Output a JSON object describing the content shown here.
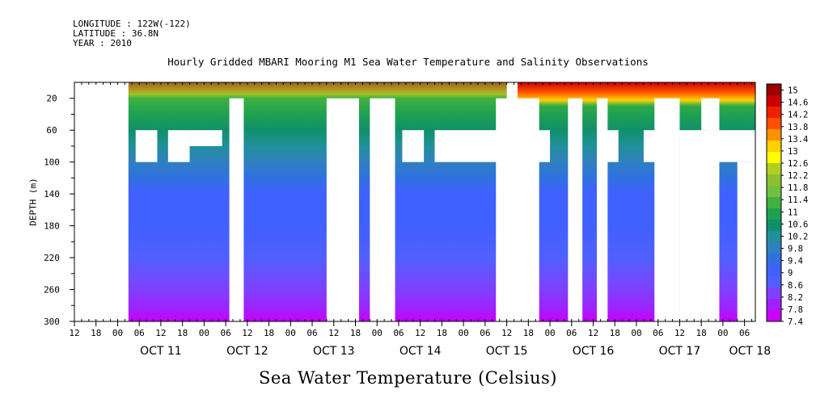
{
  "header": {
    "longitude": "LONGITUDE : 122W(-122)",
    "latitude": "LATITUDE : 36.8N",
    "year": "YEAR : 2010"
  },
  "chart_data": {
    "type": "heatmap",
    "title": "Hourly Gridded MBARI Mooring M1 Sea Water Temperature and Salinity Observations",
    "xlabel": "Sea Water Temperature (Celsius)",
    "ylabel": "DEPTH (m)",
    "x_range": [
      "2010-10-10T12:00",
      "2010-10-18T09:00"
    ],
    "ylim": [
      300,
      0
    ],
    "y_ticks": [
      20,
      60,
      100,
      140,
      180,
      220,
      260,
      300
    ],
    "x_hour_ticks": [
      "12",
      "18",
      "00",
      "06",
      "12",
      "18",
      "00",
      "06",
      "12",
      "18",
      "00",
      "06",
      "12",
      "18",
      "00",
      "06",
      "12",
      "18",
      "00",
      "06",
      "12",
      "18",
      "00",
      "06",
      "12",
      "18",
      "00",
      "06",
      "12",
      "18",
      "00",
      "06"
    ],
    "x_date_labels": [
      "OCT 11",
      "OCT 12",
      "OCT 13",
      "OCT 14",
      "OCT 15",
      "OCT 16",
      "OCT 17",
      "OCT 18"
    ],
    "colorbar": {
      "min": 7.4,
      "max": 15.2,
      "labels": [
        "15",
        "14.6",
        "14.2",
        "13.8",
        "13.4",
        "13",
        "12.6",
        "12.2",
        "11.8",
        "11.4",
        "11",
        "10.6",
        "10.2",
        "9.8",
        "9.4",
        "9",
        "8.6",
        "8.2",
        "7.8",
        "7.4"
      ],
      "colors": [
        "#cc00ff",
        "#a020ff",
        "#8040ff",
        "#5060ff",
        "#4060ff",
        "#3070e0",
        "#2f80c0",
        "#20909a",
        "#10906a",
        "#20a050",
        "#40b040",
        "#70c040",
        "#90c030",
        "#b0d020",
        "#ffff00",
        "#ffd000",
        "#ff9000",
        "#ff5000",
        "#ee2000",
        "#cc0000",
        "#990000"
      ]
    },
    "depth_profile": [
      {
        "depth": 10,
        "temp": 11.8
      },
      {
        "depth": 20,
        "temp": 11.2
      },
      {
        "depth": 40,
        "temp": 10.8
      },
      {
        "depth": 60,
        "temp": 10.4
      },
      {
        "depth": 80,
        "temp": 10.1
      },
      {
        "depth": 100,
        "temp": 9.8
      },
      {
        "depth": 120,
        "temp": 9.5
      },
      {
        "depth": 140,
        "temp": 9.2
      },
      {
        "depth": 160,
        "temp": 9.0
      },
      {
        "depth": 180,
        "temp": 8.9
      },
      {
        "depth": 220,
        "temp": 8.6
      },
      {
        "depth": 260,
        "temp": 8.2
      },
      {
        "depth": 285,
        "temp": 7.9
      },
      {
        "depth": 300,
        "temp": 7.5
      }
    ],
    "missing_columns": [
      {
        "from": "2010-10-10T12:00",
        "to": "2010-10-11T03:00",
        "d0": 0,
        "d1": 300
      },
      {
        "from": "2010-10-12T07:00",
        "to": "2010-10-12T11:00",
        "d0": 20,
        "d1": 300
      },
      {
        "from": "2010-10-13T10:00",
        "to": "2010-10-13T19:00",
        "d0": 20,
        "d1": 300
      },
      {
        "from": "2010-10-13T22:00",
        "to": "2010-10-14T05:00",
        "d0": 20,
        "d1": 300
      },
      {
        "from": "2010-10-15T09:00",
        "to": "2010-10-15T21:00",
        "d0": 20,
        "d1": 300
      },
      {
        "from": "2010-10-15T12:00",
        "to": "2010-10-15T15:00",
        "d0": 0,
        "d1": 20
      },
      {
        "from": "2010-10-16T05:00",
        "to": "2010-10-16T09:00",
        "d0": 20,
        "d1": 300
      },
      {
        "from": "2010-10-16T13:00",
        "to": "2010-10-16T16:00",
        "d0": 20,
        "d1": 300
      },
      {
        "from": "2010-10-17T05:00",
        "to": "2010-10-17T12:00",
        "d0": 20,
        "d1": 300
      },
      {
        "from": "2010-10-17T12:00",
        "to": "2010-10-17T23:00",
        "d0": 60,
        "d1": 300
      },
      {
        "from": "2010-10-17T18:00",
        "to": "2010-10-17T23:00",
        "d0": 20,
        "d1": 60
      },
      {
        "from": "2010-10-18T04:00",
        "to": "2010-10-18T09:00",
        "d0": 100,
        "d1": 300
      }
    ],
    "missing_patches": [
      {
        "from": "2010-10-11T05:00",
        "to": "2010-10-11T11:00",
        "d0": 60,
        "d1": 100
      },
      {
        "from": "2010-10-11T14:00",
        "to": "2010-10-11T20:00",
        "d0": 60,
        "d1": 100
      },
      {
        "from": "2010-10-11T20:00",
        "to": "2010-10-12T05:00",
        "d0": 60,
        "d1": 80
      },
      {
        "from": "2010-10-14T07:00",
        "to": "2010-10-14T13:00",
        "d0": 60,
        "d1": 100
      },
      {
        "from": "2010-10-14T16:00",
        "to": "2010-10-15T11:00",
        "d0": 60,
        "d1": 100
      },
      {
        "from": "2010-10-15T19:00",
        "to": "2010-10-16T00:00",
        "d0": 60,
        "d1": 100
      },
      {
        "from": "2010-10-16T14:00",
        "to": "2010-10-16T19:00",
        "d0": 60,
        "d1": 100
      },
      {
        "from": "2010-10-17T02:00",
        "to": "2010-10-17T08:00",
        "d0": 60,
        "d1": 100
      },
      {
        "from": "2010-10-17T20:00",
        "to": "2010-10-18T09:00",
        "d0": 60,
        "d1": 100
      }
    ]
  }
}
